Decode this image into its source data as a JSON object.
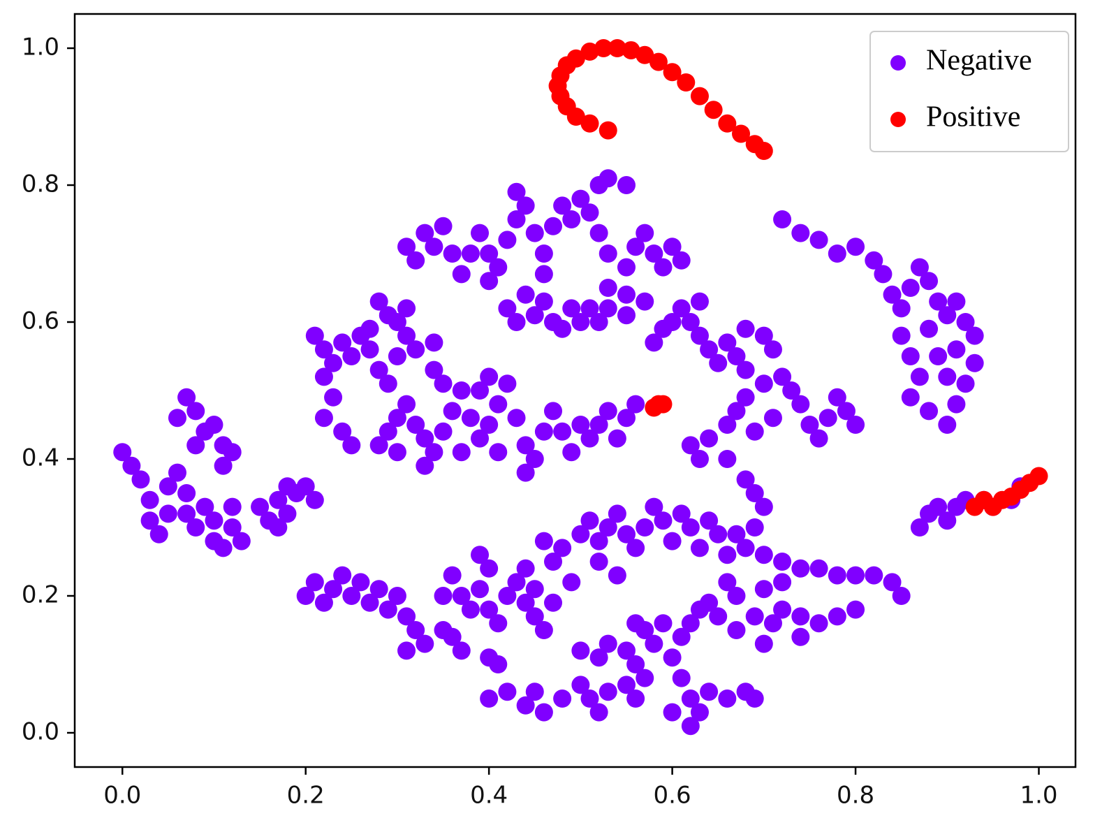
{
  "chart_data": {
    "type": "scatter",
    "xlim": [
      -0.052,
      1.04
    ],
    "ylim": [
      -0.05,
      1.05
    ],
    "xticks": [
      {
        "value": 0,
        "label": "0.0"
      },
      0.2,
      0.4,
      0.6,
      0.8,
      {
        "value": 1,
        "label": "1.0"
      }
    ],
    "yticks": [
      {
        "value": 0,
        "label": "0.0"
      },
      0.2,
      0.4,
      0.6,
      0.8,
      {
        "value": 1,
        "label": "1.0"
      }
    ],
    "legend": "upper right",
    "series": [
      {
        "name": "Negative",
        "color": "#8000ff",
        "x": [
          0.0,
          0.01,
          0.02,
          0.03,
          0.03,
          0.04,
          0.05,
          0.05,
          0.06,
          0.07,
          0.07,
          0.08,
          0.09,
          0.1,
          0.1,
          0.11,
          0.12,
          0.13,
          0.12,
          0.07,
          0.08,
          0.06,
          0.09,
          0.08,
          0.1,
          0.11,
          0.11,
          0.12,
          0.15,
          0.16,
          0.17,
          0.18,
          0.19,
          0.2,
          0.21,
          0.18,
          0.17,
          0.21,
          0.22,
          0.23,
          0.24,
          0.25,
          0.26,
          0.27,
          0.28,
          0.29,
          0.27,
          0.22,
          0.23,
          0.22,
          0.24,
          0.25,
          0.3,
          0.31,
          0.32,
          0.34,
          0.34,
          0.28,
          0.29,
          0.3,
          0.31,
          0.28,
          0.29,
          0.3,
          0.31,
          0.32,
          0.33,
          0.34,
          0.35,
          0.36,
          0.37,
          0.38,
          0.39,
          0.4,
          0.41,
          0.42,
          0.43,
          0.44,
          0.44,
          0.45,
          0.46,
          0.47,
          0.48,
          0.49,
          0.5,
          0.51,
          0.52,
          0.53,
          0.55,
          0.56,
          0.54,
          0.35,
          0.3,
          0.33,
          0.37,
          0.41,
          0.4,
          0.39,
          0.31,
          0.32,
          0.33,
          0.34,
          0.35,
          0.36,
          0.37,
          0.38,
          0.39,
          0.4,
          0.41,
          0.42,
          0.43,
          0.43,
          0.44,
          0.45,
          0.46,
          0.47,
          0.48,
          0.49,
          0.5,
          0.51,
          0.52,
          0.53,
          0.55,
          0.52,
          0.53,
          0.55,
          0.56,
          0.57,
          0.58,
          0.59,
          0.6,
          0.61,
          0.53,
          0.55,
          0.44,
          0.45,
          0.46,
          0.47,
          0.48,
          0.49,
          0.5,
          0.51,
          0.52,
          0.53,
          0.55,
          0.57,
          0.42,
          0.43,
          0.46,
          0.4,
          0.58,
          0.59,
          0.6,
          0.61,
          0.62,
          0.63,
          0.63,
          0.64,
          0.65,
          0.66,
          0.67,
          0.68,
          0.7,
          0.71,
          0.68,
          0.62,
          0.63,
          0.64,
          0.66,
          0.67,
          0.68,
          0.7,
          0.72,
          0.73,
          0.74,
          0.75,
          0.76,
          0.77,
          0.78,
          0.79,
          0.8,
          0.71,
          0.69,
          0.66,
          0.68,
          0.69,
          0.7,
          0.69,
          0.67,
          0.72,
          0.74,
          0.76,
          0.78,
          0.8,
          0.82,
          0.83,
          0.84,
          0.85,
          0.86,
          0.87,
          0.88,
          0.89,
          0.9,
          0.91,
          0.92,
          0.93,
          0.85,
          0.86,
          0.87,
          0.86,
          0.88,
          0.9,
          0.91,
          0.92,
          0.93,
          0.89,
          0.88,
          0.91,
          0.9,
          0.46,
          0.47,
          0.48,
          0.5,
          0.51,
          0.52,
          0.53,
          0.54,
          0.55,
          0.56,
          0.57,
          0.58,
          0.59,
          0.6,
          0.61,
          0.62,
          0.63,
          0.64,
          0.65,
          0.66,
          0.68,
          0.7,
          0.72,
          0.74,
          0.76,
          0.78,
          0.8,
          0.82,
          0.84,
          0.85,
          0.66,
          0.67,
          0.7,
          0.72,
          0.54,
          0.52,
          0.49,
          0.45,
          0.44,
          0.2,
          0.21,
          0.22,
          0.23,
          0.24,
          0.25,
          0.26,
          0.27,
          0.28,
          0.29,
          0.3,
          0.31,
          0.32,
          0.33,
          0.31,
          0.35,
          0.36,
          0.37,
          0.38,
          0.39,
          0.4,
          0.41,
          0.42,
          0.43,
          0.44,
          0.45,
          0.46,
          0.47,
          0.4,
          0.39,
          0.36,
          0.37,
          0.35,
          0.41,
          0.4,
          0.4,
          0.42,
          0.44,
          0.45,
          0.46,
          0.48,
          0.5,
          0.51,
          0.52,
          0.53,
          0.55,
          0.56,
          0.5,
          0.52,
          0.53,
          0.55,
          0.56,
          0.57,
          0.56,
          0.57,
          0.58,
          0.59,
          0.6,
          0.61,
          0.62,
          0.63,
          0.62,
          0.64,
          0.66,
          0.68,
          0.69,
          0.6,
          0.61,
          0.62,
          0.63,
          0.65,
          0.67,
          0.69,
          0.71,
          0.72,
          0.74,
          0.76,
          0.78,
          0.8,
          0.74,
          0.7,
          0.64,
          0.87,
          0.88,
          0.89,
          0.9,
          0.91,
          0.92,
          0.94,
          0.95,
          0.97,
          0.98
        ],
        "values": [
          0.41,
          0.39,
          0.37,
          0.34,
          0.31,
          0.29,
          0.32,
          0.36,
          0.38,
          0.35,
          0.32,
          0.3,
          0.33,
          0.31,
          0.28,
          0.27,
          0.3,
          0.28,
          0.33,
          0.49,
          0.47,
          0.46,
          0.44,
          0.42,
          0.45,
          0.42,
          0.39,
          0.41,
          0.33,
          0.31,
          0.3,
          0.32,
          0.35,
          0.36,
          0.34,
          0.36,
          0.34,
          0.58,
          0.56,
          0.54,
          0.57,
          0.55,
          0.58,
          0.56,
          0.53,
          0.51,
          0.59,
          0.52,
          0.49,
          0.46,
          0.44,
          0.42,
          0.55,
          0.58,
          0.56,
          0.57,
          0.53,
          0.63,
          0.61,
          0.6,
          0.62,
          0.42,
          0.44,
          0.46,
          0.48,
          0.45,
          0.43,
          0.41,
          0.44,
          0.47,
          0.5,
          0.46,
          0.43,
          0.45,
          0.48,
          0.51,
          0.46,
          0.42,
          0.38,
          0.4,
          0.44,
          0.47,
          0.44,
          0.41,
          0.45,
          0.43,
          0.45,
          0.47,
          0.46,
          0.48,
          0.43,
          0.51,
          0.41,
          0.39,
          0.41,
          0.41,
          0.52,
          0.5,
          0.71,
          0.69,
          0.73,
          0.71,
          0.74,
          0.7,
          0.67,
          0.7,
          0.73,
          0.7,
          0.68,
          0.72,
          0.75,
          0.79,
          0.77,
          0.73,
          0.7,
          0.74,
          0.77,
          0.75,
          0.78,
          0.76,
          0.8,
          0.81,
          0.8,
          0.73,
          0.7,
          0.68,
          0.71,
          0.73,
          0.7,
          0.68,
          0.71,
          0.69,
          0.65,
          0.64,
          0.64,
          0.61,
          0.63,
          0.6,
          0.59,
          0.62,
          0.6,
          0.62,
          0.6,
          0.62,
          0.61,
          0.63,
          0.62,
          0.6,
          0.67,
          0.66,
          0.57,
          0.59,
          0.6,
          0.62,
          0.6,
          0.58,
          0.63,
          0.56,
          0.54,
          0.57,
          0.55,
          0.53,
          0.58,
          0.56,
          0.59,
          0.42,
          0.4,
          0.43,
          0.45,
          0.47,
          0.49,
          0.51,
          0.52,
          0.5,
          0.48,
          0.45,
          0.43,
          0.46,
          0.49,
          0.47,
          0.45,
          0.46,
          0.44,
          0.4,
          0.37,
          0.35,
          0.33,
          0.3,
          0.29,
          0.75,
          0.73,
          0.72,
          0.7,
          0.71,
          0.69,
          0.67,
          0.64,
          0.62,
          0.65,
          0.68,
          0.66,
          0.63,
          0.61,
          0.63,
          0.6,
          0.58,
          0.58,
          0.55,
          0.52,
          0.49,
          0.47,
          0.45,
          0.48,
          0.51,
          0.54,
          0.55,
          0.59,
          0.56,
          0.52,
          0.28,
          0.25,
          0.27,
          0.29,
          0.31,
          0.28,
          0.3,
          0.32,
          0.29,
          0.27,
          0.3,
          0.33,
          0.31,
          0.28,
          0.32,
          0.3,
          0.27,
          0.31,
          0.29,
          0.26,
          0.27,
          0.26,
          0.25,
          0.24,
          0.24,
          0.23,
          0.23,
          0.23,
          0.22,
          0.2,
          0.22,
          0.2,
          0.21,
          0.22,
          0.23,
          0.25,
          0.22,
          0.21,
          0.24,
          0.2,
          0.22,
          0.19,
          0.21,
          0.23,
          0.2,
          0.22,
          0.19,
          0.21,
          0.18,
          0.2,
          0.17,
          0.15,
          0.13,
          0.12,
          0.2,
          0.23,
          0.2,
          0.18,
          0.21,
          0.18,
          0.16,
          0.2,
          0.22,
          0.19,
          0.17,
          0.15,
          0.19,
          0.24,
          0.26,
          0.14,
          0.12,
          0.15,
          0.1,
          0.11,
          0.05,
          0.06,
          0.04,
          0.06,
          0.03,
          0.05,
          0.07,
          0.05,
          0.03,
          0.06,
          0.07,
          0.05,
          0.12,
          0.11,
          0.13,
          0.12,
          0.1,
          0.08,
          0.16,
          0.15,
          0.13,
          0.16,
          0.11,
          0.08,
          0.05,
          0.03,
          0.01,
          0.06,
          0.05,
          0.06,
          0.05,
          0.03,
          0.14,
          0.16,
          0.18,
          0.17,
          0.15,
          0.17,
          0.16,
          0.18,
          0.17,
          0.16,
          0.17,
          0.18,
          0.14,
          0.13,
          0.19,
          0.3,
          0.32,
          0.33,
          0.31,
          0.33,
          0.34,
          0.34,
          0.33,
          0.34,
          0.36
        ]
      },
      {
        "name": "Positive",
        "color": "#ff0000",
        "x": [
          0.53,
          0.51,
          0.495,
          0.485,
          0.478,
          0.475,
          0.478,
          0.485,
          0.495,
          0.51,
          0.525,
          0.54,
          0.555,
          0.57,
          0.585,
          0.6,
          0.615,
          0.63,
          0.645,
          0.66,
          0.675,
          0.69,
          0.7,
          0.58,
          0.585,
          0.59,
          0.93,
          0.94,
          0.95,
          0.96,
          0.97,
          0.98,
          0.99,
          1.0
        ],
        "values": [
          0.88,
          0.89,
          0.9,
          0.915,
          0.93,
          0.945,
          0.96,
          0.975,
          0.985,
          0.995,
          1.0,
          1.0,
          0.997,
          0.99,
          0.98,
          0.965,
          0.95,
          0.93,
          0.91,
          0.89,
          0.875,
          0.86,
          0.85,
          0.475,
          0.48,
          0.48,
          0.33,
          0.34,
          0.33,
          0.34,
          0.345,
          0.355,
          0.365,
          0.375
        ]
      }
    ]
  }
}
